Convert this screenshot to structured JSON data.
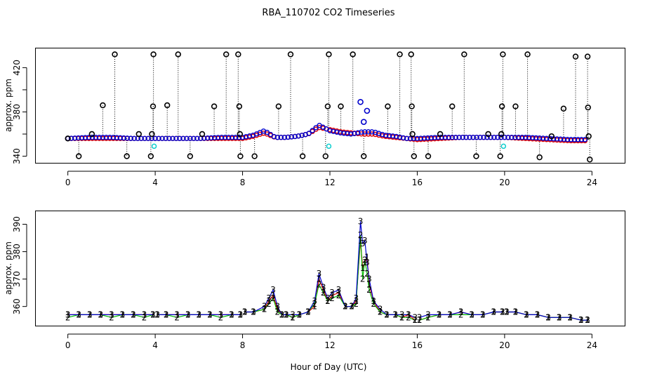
{
  "figure": {
    "title": "RBA_110702  CO2 Timeseries",
    "xlabel": "Hour of Day (UTC)"
  },
  "colors": {
    "flag_points": "#000000",
    "cyan_points": "#00cccc",
    "series1": "#dd0000",
    "series2": "#00bb00",
    "series3": "#0000cc",
    "dotted": "#000000"
  },
  "chart_data": [
    {
      "type": "scatter",
      "panel": "top",
      "title": "RBA_110702  CO2 Timeseries",
      "xlabel": "",
      "ylabel": "approx. ppm",
      "xlim": [
        -1.5,
        25.5
      ],
      "ylim": [
        334,
        438
      ],
      "xticks": [
        0,
        4,
        8,
        12,
        16,
        20,
        24
      ],
      "xtick_labels": [
        "0",
        "4",
        "8",
        "12",
        "16",
        "20",
        "24"
      ],
      "yticks": [
        340,
        360,
        380,
        400,
        420
      ],
      "ytick_labels": [
        "340",
        "",
        "380",
        "",
        "420"
      ],
      "baseline_series": [
        {
          "name": "series1",
          "color": "#dd0000",
          "x": [
            0,
            1,
            2,
            3,
            4,
            5,
            6,
            7,
            8,
            8.5,
            9,
            9.5,
            10,
            10.5,
            11,
            11.5,
            12,
            12.5,
            13,
            13.5,
            14,
            14.5,
            15,
            15.5,
            16,
            17,
            18,
            19,
            20,
            21,
            22,
            23,
            23.8
          ],
          "y": [
            356,
            356,
            356,
            356,
            356,
            356,
            356,
            356,
            356,
            358,
            361,
            357,
            357,
            358,
            360,
            366,
            364,
            362,
            361,
            360,
            360,
            358,
            357,
            356,
            355,
            356,
            357,
            357,
            357,
            356,
            355,
            354,
            354
          ]
        },
        {
          "name": "series3",
          "color": "#0000cc",
          "x": [
            0,
            1,
            2,
            3,
            4,
            5,
            6,
            7,
            8,
            8.5,
            9,
            9.5,
            10,
            10.5,
            11,
            11.5,
            12,
            12.5,
            13,
            13.5,
            14,
            14.5,
            15,
            15.5,
            16,
            17,
            18,
            19,
            20,
            21,
            22,
            23,
            23.8
          ],
          "y": [
            356,
            357,
            357,
            356,
            356,
            356,
            356,
            357,
            357,
            359,
            363,
            357,
            357,
            358,
            360,
            368,
            363,
            361,
            360,
            362,
            362,
            359,
            358,
            356,
            356,
            357,
            357,
            357,
            357,
            357,
            356,
            355,
            355
          ]
        }
      ],
      "outliers": [
        {
          "x": 0,
          "y": 356
        },
        {
          "x": 0.5,
          "y": 340
        },
        {
          "x": 1.1,
          "y": 360
        },
        {
          "x": 1.6,
          "y": 386
        },
        {
          "x": 2.15,
          "y": 432
        },
        {
          "x": 2.7,
          "y": 340
        },
        {
          "x": 3.25,
          "y": 360
        },
        {
          "x": 3.8,
          "y": 340
        },
        {
          "x": 3.85,
          "y": 360
        },
        {
          "x": 3.9,
          "y": 385
        },
        {
          "x": 3.92,
          "y": 432
        },
        {
          "x": 4.55,
          "y": 386
        },
        {
          "x": 5.05,
          "y": 432
        },
        {
          "x": 5.6,
          "y": 340
        },
        {
          "x": 6.15,
          "y": 360
        },
        {
          "x": 6.7,
          "y": 385
        },
        {
          "x": 7.25,
          "y": 432
        },
        {
          "x": 7.8,
          "y": 432
        },
        {
          "x": 7.85,
          "y": 385
        },
        {
          "x": 7.88,
          "y": 360
        },
        {
          "x": 7.9,
          "y": 340
        },
        {
          "x": 8.55,
          "y": 340
        },
        {
          "x": 9.65,
          "y": 385
        },
        {
          "x": 10.2,
          "y": 432
        },
        {
          "x": 10.75,
          "y": 340
        },
        {
          "x": 11.8,
          "y": 340
        },
        {
          "x": 11.9,
          "y": 385
        },
        {
          "x": 11.95,
          "y": 432
        },
        {
          "x": 12.5,
          "y": 385
        },
        {
          "x": 13.05,
          "y": 432
        },
        {
          "x": 13.55,
          "y": 340
        },
        {
          "x": 14.65,
          "y": 385
        },
        {
          "x": 15.2,
          "y": 432
        },
        {
          "x": 15.72,
          "y": 432
        },
        {
          "x": 15.75,
          "y": 385
        },
        {
          "x": 15.78,
          "y": 360
        },
        {
          "x": 15.85,
          "y": 340
        },
        {
          "x": 16.5,
          "y": 340
        },
        {
          "x": 17.05,
          "y": 360
        },
        {
          "x": 17.6,
          "y": 385
        },
        {
          "x": 18.15,
          "y": 432
        },
        {
          "x": 18.7,
          "y": 340
        },
        {
          "x": 19.25,
          "y": 360
        },
        {
          "x": 19.8,
          "y": 340
        },
        {
          "x": 19.85,
          "y": 360
        },
        {
          "x": 19.88,
          "y": 385
        },
        {
          "x": 19.92,
          "y": 432
        },
        {
          "x": 20.5,
          "y": 385
        },
        {
          "x": 21.05,
          "y": 432
        },
        {
          "x": 21.6,
          "y": 339
        },
        {
          "x": 22.15,
          "y": 358
        },
        {
          "x": 22.7,
          "y": 383
        },
        {
          "x": 23.25,
          "y": 430
        },
        {
          "x": 23.8,
          "y": 430
        },
        {
          "x": 23.82,
          "y": 384
        },
        {
          "x": 23.85,
          "y": 358
        },
        {
          "x": 23.9,
          "y": 337
        }
      ],
      "cyan_points": [
        {
          "x": 3.95,
          "y": 349
        },
        {
          "x": 11.95,
          "y": 349
        },
        {
          "x": 19.95,
          "y": 349
        }
      ],
      "spikes": [
        {
          "x": 13.4,
          "y": 389
        },
        {
          "x": 13.55,
          "y": 371
        },
        {
          "x": 13.7,
          "y": 381
        }
      ]
    },
    {
      "type": "line",
      "panel": "bottom",
      "xlabel": "Hour of Day (UTC)",
      "ylabel": "approx. ppm",
      "xlim": [
        -1.5,
        25.5
      ],
      "ylim": [
        353,
        395
      ],
      "xticks": [
        0,
        4,
        8,
        12,
        16,
        20,
        24
      ],
      "xtick_labels": [
        "0",
        "4",
        "8",
        "12",
        "16",
        "20",
        "24"
      ],
      "yticks": [
        360,
        370,
        380,
        390
      ],
      "ytick_labels": [
        "360",
        "370",
        "380",
        "390"
      ],
      "series": [
        {
          "name": "1",
          "color": "#dd0000",
          "x": [
            0,
            0.5,
            1,
            1.5,
            2,
            2.5,
            3,
            3.5,
            3.9,
            4.1,
            4.5,
            5,
            5.5,
            6,
            6.5,
            7,
            7.5,
            7.9,
            8.1,
            8.5,
            9,
            9.2,
            9.4,
            9.6,
            9.8,
            10,
            10.3,
            10.6,
            11,
            11.3,
            11.5,
            11.7,
            11.9,
            12.1,
            12.4,
            12.7,
            13,
            13.2,
            13.4,
            13.5,
            13.6,
            13.7,
            13.8,
            14,
            14.3,
            14.6,
            15,
            15.3,
            15.6,
            15.9,
            16.1,
            16.5,
            17,
            17.5,
            18,
            18.5,
            19,
            19.5,
            19.9,
            20.1,
            20.5,
            21,
            21.5,
            22,
            22.5,
            23,
            23.5,
            23.8
          ],
          "values": [
            357,
            357,
            357,
            357,
            357,
            357,
            357,
            357,
            357,
            357,
            357,
            357,
            357,
            357,
            357,
            357,
            357,
            357,
            358,
            358,
            359,
            362,
            364,
            359,
            357,
            357,
            356,
            357,
            358,
            360,
            370,
            366,
            362,
            364,
            365,
            360,
            360,
            362,
            384,
            374,
            376,
            378,
            368,
            362,
            358,
            357,
            357,
            356,
            357,
            355,
            355,
            356,
            357,
            357,
            358,
            357,
            357,
            358,
            358,
            358,
            358,
            357,
            357,
            356,
            356,
            356,
            355,
            355
          ]
        },
        {
          "name": "2",
          "color": "#00bb00",
          "x": [
            0,
            0.5,
            1,
            1.5,
            2,
            2.5,
            3,
            3.5,
            3.9,
            4.1,
            4.5,
            5,
            5.5,
            6,
            6.5,
            7,
            7.5,
            7.9,
            8.1,
            8.5,
            9,
            9.2,
            9.4,
            9.6,
            9.8,
            10,
            10.3,
            10.6,
            11,
            11.3,
            11.5,
            11.7,
            11.9,
            12.1,
            12.4,
            12.7,
            13,
            13.2,
            13.4,
            13.5,
            13.6,
            13.7,
            13.8,
            14,
            14.3,
            14.6,
            15,
            15.3,
            15.6,
            15.9,
            16.1,
            16.5,
            17,
            17.5,
            18,
            18.5,
            19,
            19.5,
            19.9,
            20.1,
            20.5,
            21,
            21.5,
            22,
            22.5,
            23,
            23.5,
            23.8
          ],
          "values": [
            356,
            357,
            357,
            357,
            356,
            357,
            357,
            356,
            357,
            357,
            357,
            356,
            357,
            357,
            357,
            356,
            357,
            357,
            358,
            358,
            359,
            361,
            363,
            358,
            357,
            357,
            356,
            357,
            358,
            361,
            368,
            365,
            362,
            363,
            364,
            360,
            360,
            361,
            386,
            370,
            377,
            372,
            366,
            361,
            358,
            357,
            357,
            356,
            356,
            355,
            355,
            356,
            357,
            357,
            357,
            357,
            357,
            358,
            358,
            358,
            358,
            357,
            357,
            356,
            356,
            356,
            355,
            355
          ]
        },
        {
          "name": "3",
          "color": "#0000cc",
          "x": [
            0,
            0.5,
            1,
            1.5,
            2,
            2.5,
            3,
            3.5,
            3.9,
            4.1,
            4.5,
            5,
            5.5,
            6,
            6.5,
            7,
            7.5,
            7.9,
            8.1,
            8.5,
            9,
            9.2,
            9.4,
            9.6,
            9.8,
            10,
            10.3,
            10.6,
            11,
            11.3,
            11.5,
            11.7,
            11.9,
            12.1,
            12.4,
            12.7,
            13,
            13.2,
            13.4,
            13.5,
            13.6,
            13.7,
            13.8,
            14,
            14.3,
            14.6,
            15,
            15.3,
            15.6,
            15.9,
            16.1,
            16.5,
            17,
            17.5,
            18,
            18.5,
            19,
            19.5,
            19.9,
            20.1,
            20.5,
            21,
            21.5,
            22,
            22.5,
            23,
            23.5,
            23.8
          ],
          "values": [
            357,
            357,
            357,
            357,
            357,
            357,
            357,
            357,
            357,
            357,
            357,
            357,
            357,
            357,
            357,
            357,
            357,
            357,
            358,
            358,
            360,
            363,
            366,
            360,
            357,
            357,
            357,
            357,
            358,
            362,
            372,
            367,
            363,
            365,
            366,
            360,
            360,
            363,
            391,
            383,
            384,
            376,
            370,
            362,
            359,
            357,
            357,
            357,
            357,
            356,
            356,
            357,
            357,
            357,
            358,
            357,
            357,
            358,
            358,
            358,
            358,
            357,
            357,
            356,
            356,
            356,
            355,
            355
          ]
        }
      ]
    }
  ]
}
